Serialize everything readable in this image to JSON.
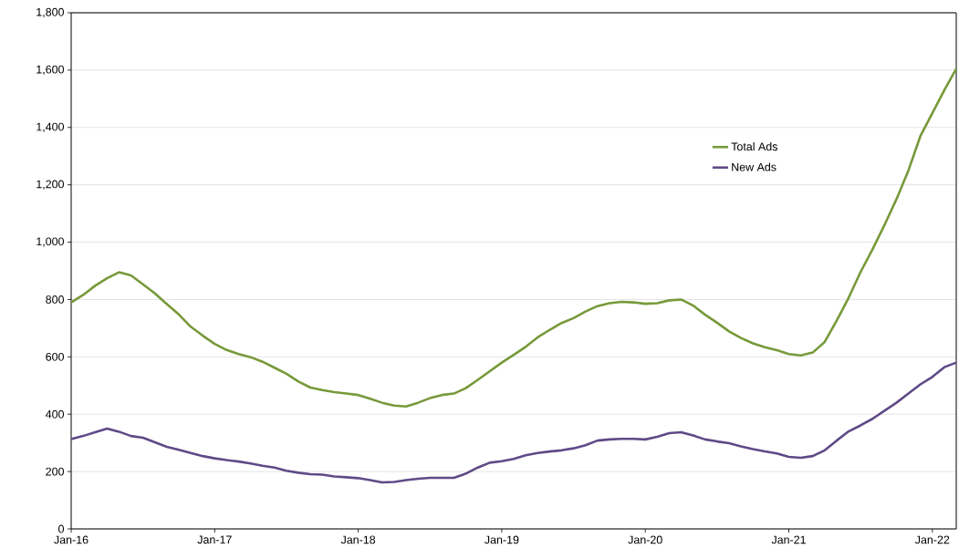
{
  "chart_data": {
    "type": "line",
    "x": [
      "2016-01",
      "2016-02",
      "2016-03",
      "2016-04",
      "2016-05",
      "2016-06",
      "2016-07",
      "2016-08",
      "2016-09",
      "2016-10",
      "2016-11",
      "2016-12",
      "2017-01",
      "2017-02",
      "2017-03",
      "2017-04",
      "2017-05",
      "2017-06",
      "2017-07",
      "2017-08",
      "2017-09",
      "2017-10",
      "2017-11",
      "2017-12",
      "2018-01",
      "2018-02",
      "2018-03",
      "2018-04",
      "2018-05",
      "2018-06",
      "2018-07",
      "2018-08",
      "2018-09",
      "2018-10",
      "2018-11",
      "2018-12",
      "2019-01",
      "2019-02",
      "2019-03",
      "2019-04",
      "2019-05",
      "2019-06",
      "2019-07",
      "2019-08",
      "2019-09",
      "2019-10",
      "2019-11",
      "2019-12",
      "2020-01",
      "2020-02",
      "2020-03",
      "2020-04",
      "2020-05",
      "2020-06",
      "2020-07",
      "2020-08",
      "2020-09",
      "2020-10",
      "2020-11",
      "2020-12",
      "2021-01",
      "2021-02",
      "2021-03",
      "2021-04",
      "2021-05",
      "2021-06",
      "2021-07",
      "2021-08",
      "2021-09",
      "2021-10",
      "2021-11",
      "2021-12",
      "2022-01",
      "2022-02",
      "2022-03"
    ],
    "series": [
      {
        "name": "Total Ads",
        "color": "#77993a",
        "values": [
          790,
          816,
          848,
          874,
          895,
          884,
          853,
          821,
          784,
          748,
          705,
          674,
          645,
          624,
          610,
          599,
          583,
          562,
          541,
          514,
          493,
          484,
          477,
          472,
          467,
          454,
          440,
          430,
          427,
          440,
          456,
          467,
          472,
          491,
          520,
          550,
          580,
          607,
          635,
          668,
          694,
          718,
          735,
          758,
          777,
          787,
          792,
          790,
          785,
          787,
          797,
          800,
          779,
          747,
          719,
          689,
          666,
          647,
          634,
          623,
          610,
          605,
          615,
          652,
          726,
          806,
          896,
          975,
          1060,
          1150,
          1250,
          1370,
          1450,
          1530,
          1605
        ]
      },
      {
        "name": "New Ads",
        "color": "#5f4a87",
        "values": [
          313,
          324,
          337,
          350,
          339,
          324,
          318,
          302,
          286,
          276,
          265,
          254,
          246,
          240,
          235,
          228,
          220,
          214,
          203,
          196,
          191,
          189,
          183,
          180,
          177,
          170,
          162,
          164,
          170,
          175,
          178,
          178,
          178,
          193,
          214,
          231,
          236,
          244,
          257,
          265,
          270,
          274,
          281,
          292,
          308,
          312,
          314,
          314,
          312,
          321,
          334,
          337,
          326,
          312,
          305,
          299,
          288,
          278,
          270,
          263,
          251,
          248,
          254,
          274,
          308,
          340,
          361,
          384,
          412,
          440,
          472,
          504,
          530,
          564,
          580
        ]
      }
    ],
    "xlim": [
      "2016-01",
      "2022-03"
    ],
    "xticks": [
      {
        "value": "2016-01",
        "label": "Jan-16"
      },
      {
        "value": "2017-01",
        "label": "Jan-17"
      },
      {
        "value": "2018-01",
        "label": "Jan-18"
      },
      {
        "value": "2019-01",
        "label": "Jan-19"
      },
      {
        "value": "2020-01",
        "label": "Jan-20"
      },
      {
        "value": "2021-01",
        "label": "Jan-21"
      },
      {
        "value": "2022-01",
        "label": "Jan-22"
      }
    ],
    "ylim": [
      0,
      1800
    ],
    "yticks": [
      0,
      200,
      400,
      600,
      800,
      {
        "value": 1000,
        "label": "1,000"
      },
      {
        "value": 1200,
        "label": "1,200"
      },
      {
        "value": 1400,
        "label": "1,400"
      },
      {
        "value": 1600,
        "label": "1,600"
      },
      {
        "value": 1800,
        "label": "1,800"
      }
    ],
    "grid": "y",
    "legend": "right",
    "marker": "none",
    "line_style": "solid"
  }
}
